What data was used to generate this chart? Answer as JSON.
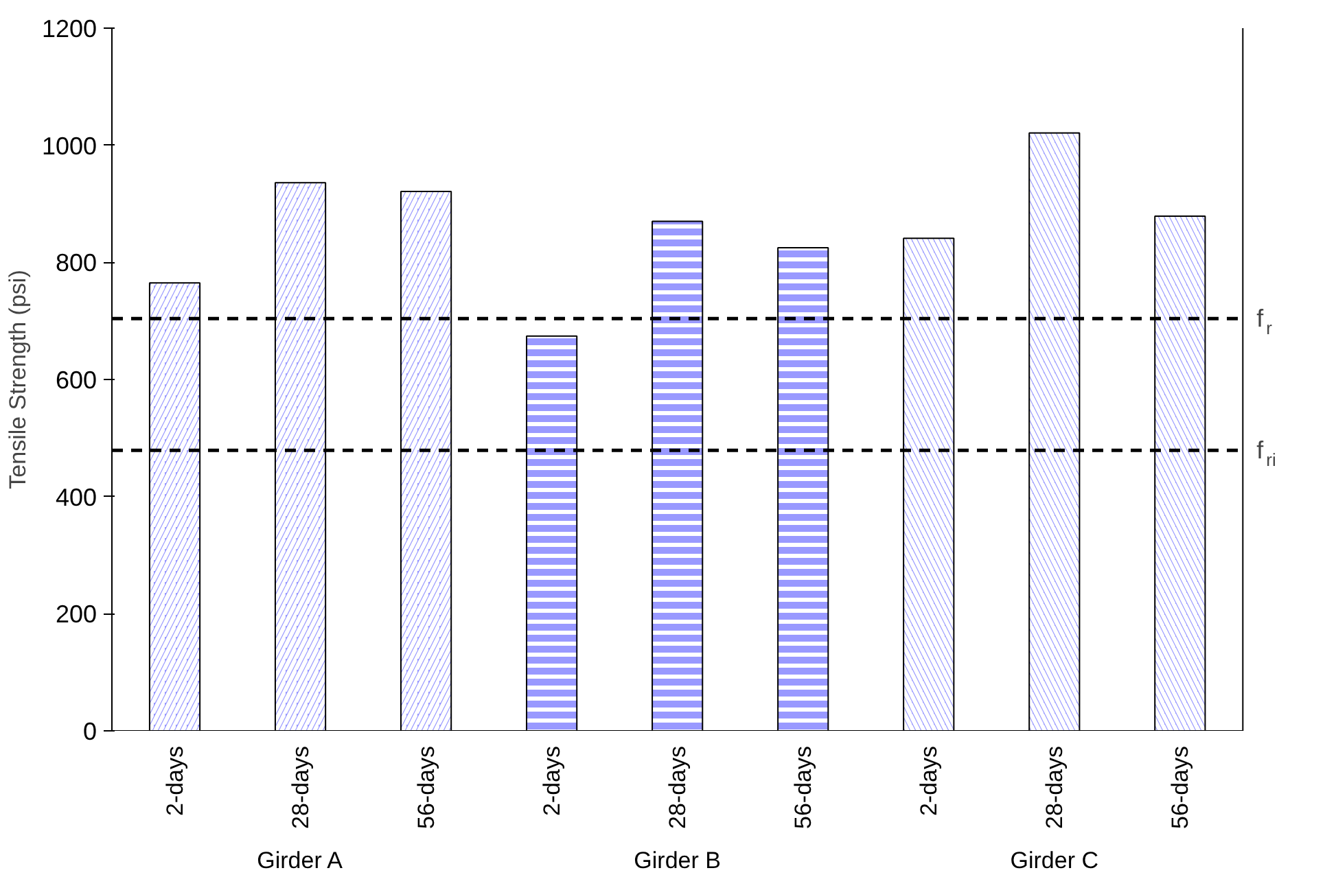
{
  "chart_data": {
    "type": "bar",
    "ylabel": "Tensile Strength (psi)",
    "categories": [
      "2-days",
      "28-days",
      "56-days",
      "2-days",
      "28-days",
      "56-days",
      "2-days",
      "28-days",
      "56-days"
    ],
    "values": [
      765,
      936,
      921,
      674,
      870,
      825,
      841,
      1021,
      879
    ],
    "color": "#9999ff",
    "annotations": [
      "Girder A",
      "Girder B",
      "Girder C"
    ],
    "ylim": [
      0,
      1200
    ],
    "yticks": [
      0,
      200,
      400,
      600,
      800,
      1000,
      1200
    ],
    "grid": false,
    "ref_lines": [
      {
        "axis": "y",
        "value": 704,
        "label": "f$_{r}$",
        "color": "#000000",
        "line_style": "dashed"
      },
      {
        "axis": "y",
        "value": 479,
        "label": "f$_{ri}$",
        "color": "#000000",
        "line_style": "dashed"
      }
    ]
  }
}
